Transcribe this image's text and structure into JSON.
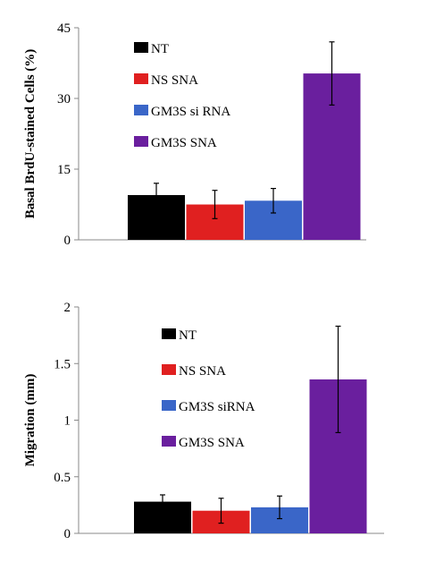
{
  "chart_data": [
    {
      "type": "bar",
      "title": "",
      "xlabel": "",
      "ylabel": "Basal BrdU-stained Cells (%)",
      "ylim": [
        0,
        45
      ],
      "yticks": [
        "0",
        "15",
        "30",
        "45"
      ],
      "grid": false,
      "legend_position": "top-left",
      "categories": [
        "NT",
        "NS SNA",
        "GM3S si RNA",
        "GM3S SNA"
      ],
      "values": [
        9.5,
        7.5,
        8.3,
        35.3
      ],
      "errors": [
        2.5,
        3,
        2.6,
        6.7
      ],
      "colors": [
        "#000000",
        "#e02020",
        "#3a66c8",
        "#6a1f9e"
      ]
    },
    {
      "type": "bar",
      "title": "",
      "xlabel": "",
      "ylabel": "Migration (mm)",
      "ylim": [
        0,
        2
      ],
      "yticks": [
        "0",
        "0.5",
        "1",
        "1.5",
        "2"
      ],
      "grid": false,
      "legend_position": "top-left",
      "categories": [
        "NT",
        "NS SNA",
        "GM3S siRNA",
        "GM3S SNA"
      ],
      "values": [
        0.28,
        0.2,
        0.23,
        1.36
      ],
      "errors": [
        0.06,
        0.11,
        0.1,
        0.47
      ],
      "colors": [
        "#000000",
        "#e02020",
        "#3a66c8",
        "#6a1f9e"
      ]
    }
  ]
}
